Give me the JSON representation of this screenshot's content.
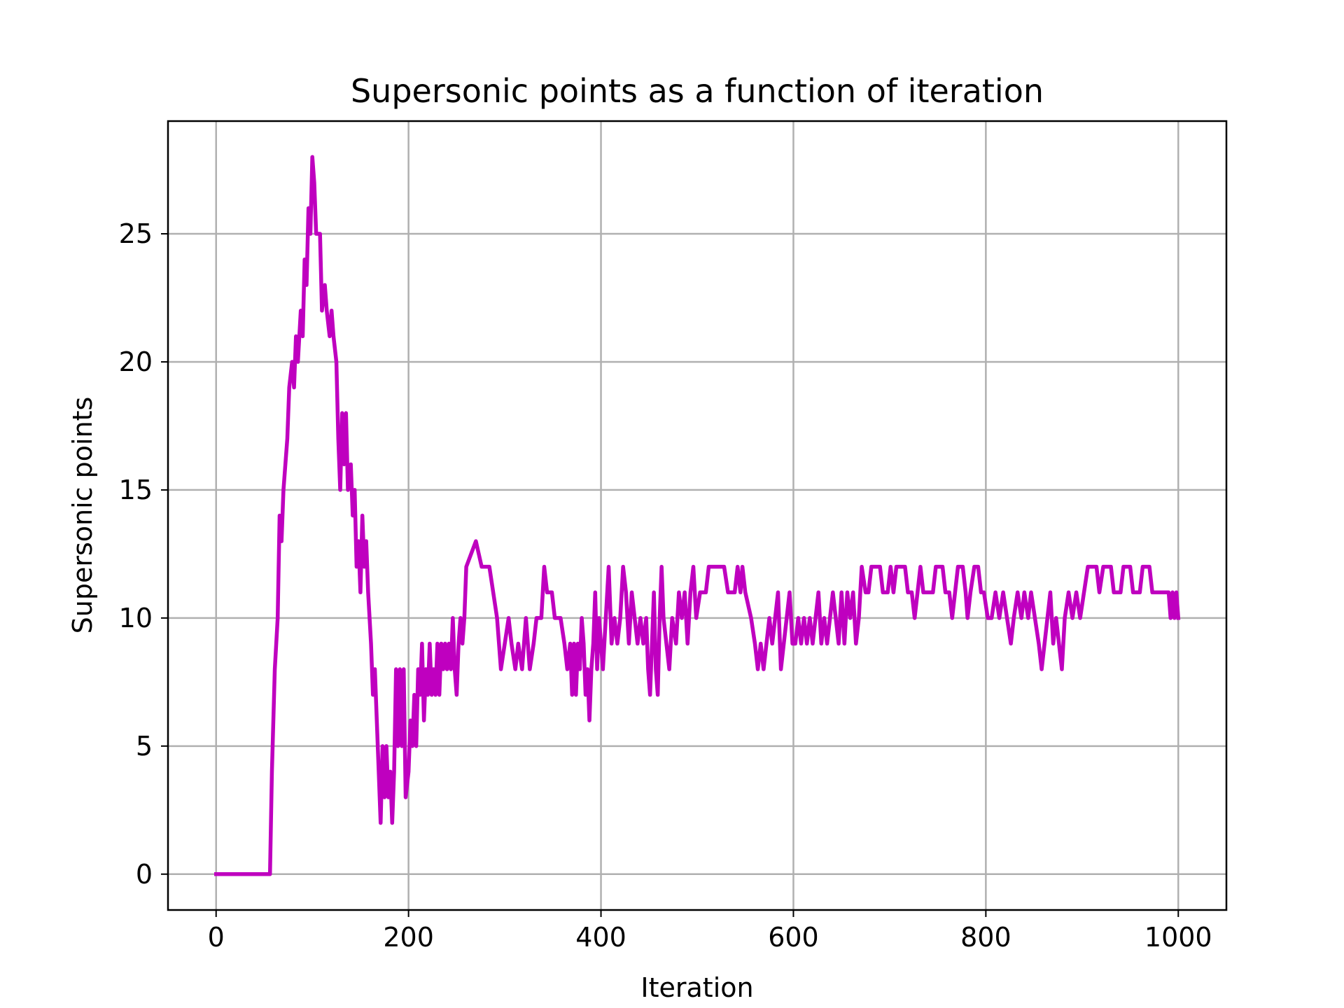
{
  "chart_data": {
    "type": "line",
    "title": "Supersonic points as a function of iteration",
    "xlabel": "Iteration",
    "ylabel": "Supersonic points",
    "xlim": [
      -50,
      1050
    ],
    "ylim": [
      -1.4,
      29.4
    ],
    "xticks": [
      0,
      200,
      400,
      600,
      800,
      1000
    ],
    "yticks": [
      0,
      5,
      10,
      15,
      20,
      25
    ],
    "grid": true,
    "series": [
      {
        "color": "#bf00bf",
        "points": [
          [
            0,
            0
          ],
          [
            56,
            0
          ],
          [
            58,
            4
          ],
          [
            61,
            8
          ],
          [
            64,
            10
          ],
          [
            66,
            14
          ],
          [
            68,
            13
          ],
          [
            70,
            15
          ],
          [
            72,
            16
          ],
          [
            74,
            17
          ],
          [
            76,
            19
          ],
          [
            79,
            20
          ],
          [
            81,
            19
          ],
          [
            83,
            21
          ],
          [
            85,
            20
          ],
          [
            88,
            22
          ],
          [
            90,
            21
          ],
          [
            92,
            24
          ],
          [
            94,
            23
          ],
          [
            96,
            26
          ],
          [
            98,
            25
          ],
          [
            100,
            28
          ],
          [
            102,
            27
          ],
          [
            104,
            25
          ],
          [
            108,
            25
          ],
          [
            110,
            22
          ],
          [
            113,
            23
          ],
          [
            115,
            22
          ],
          [
            118,
            21
          ],
          [
            120,
            22
          ],
          [
            122,
            21
          ],
          [
            125,
            20
          ],
          [
            127,
            17
          ],
          [
            129,
            15
          ],
          [
            131,
            18
          ],
          [
            133,
            16
          ],
          [
            135,
            18
          ],
          [
            137,
            15
          ],
          [
            140,
            16
          ],
          [
            142,
            14
          ],
          [
            144,
            15
          ],
          [
            146,
            12
          ],
          [
            148,
            13
          ],
          [
            150,
            11
          ],
          [
            152,
            14
          ],
          [
            154,
            12
          ],
          [
            156,
            13
          ],
          [
            158,
            11
          ],
          [
            161,
            9
          ],
          [
            163,
            7
          ],
          [
            165,
            8
          ],
          [
            167,
            6
          ],
          [
            169,
            4
          ],
          [
            171,
            2
          ],
          [
            173,
            5
          ],
          [
            175,
            3
          ],
          [
            177,
            5
          ],
          [
            179,
            3
          ],
          [
            181,
            4
          ],
          [
            183,
            2
          ],
          [
            185,
            4
          ],
          [
            187,
            8
          ],
          [
            189,
            5
          ],
          [
            191,
            8
          ],
          [
            193,
            5
          ],
          [
            195,
            8
          ],
          [
            197,
            3
          ],
          [
            200,
            4
          ],
          [
            202,
            6
          ],
          [
            204,
            5
          ],
          [
            206,
            7
          ],
          [
            208,
            5
          ],
          [
            210,
            8
          ],
          [
            212,
            7
          ],
          [
            214,
            9
          ],
          [
            216,
            6
          ],
          [
            218,
            8
          ],
          [
            220,
            7
          ],
          [
            222,
            9
          ],
          [
            224,
            7
          ],
          [
            226,
            8
          ],
          [
            228,
            7
          ],
          [
            230,
            9
          ],
          [
            232,
            7
          ],
          [
            234,
            9
          ],
          [
            236,
            8
          ],
          [
            238,
            9
          ],
          [
            240,
            8
          ],
          [
            242,
            9
          ],
          [
            244,
            8
          ],
          [
            246,
            10
          ],
          [
            248,
            8
          ],
          [
            250,
            7
          ],
          [
            252,
            9
          ],
          [
            254,
            10
          ],
          [
            256,
            9
          ],
          [
            258,
            10
          ],
          [
            260,
            12
          ],
          [
            270,
            13
          ],
          [
            276,
            12
          ],
          [
            284,
            12
          ],
          [
            288,
            11
          ],
          [
            292,
            10
          ],
          [
            296,
            8
          ],
          [
            300,
            9
          ],
          [
            304,
            10
          ],
          [
            307,
            9
          ],
          [
            311,
            8
          ],
          [
            314,
            9
          ],
          [
            318,
            8
          ],
          [
            322,
            10
          ],
          [
            326,
            8
          ],
          [
            330,
            9
          ],
          [
            333,
            10
          ],
          [
            338,
            10
          ],
          [
            341,
            12
          ],
          [
            344,
            11
          ],
          [
            349,
            11
          ],
          [
            352,
            10
          ],
          [
            358,
            10
          ],
          [
            362,
            9
          ],
          [
            365,
            8
          ],
          [
            368,
            9
          ],
          [
            370,
            7
          ],
          [
            372,
            9
          ],
          [
            374,
            7
          ],
          [
            376,
            9
          ],
          [
            378,
            8
          ],
          [
            380,
            10
          ],
          [
            382,
            9
          ],
          [
            384,
            7
          ],
          [
            386,
            8
          ],
          [
            388,
            6
          ],
          [
            390,
            8
          ],
          [
            392,
            9
          ],
          [
            394,
            11
          ],
          [
            396,
            8
          ],
          [
            398,
            10
          ],
          [
            400,
            9
          ],
          [
            402,
            8
          ],
          [
            405,
            10
          ],
          [
            408,
            12
          ],
          [
            411,
            9
          ],
          [
            414,
            10
          ],
          [
            417,
            9
          ],
          [
            420,
            10
          ],
          [
            423,
            12
          ],
          [
            426,
            11
          ],
          [
            429,
            9
          ],
          [
            432,
            11
          ],
          [
            435,
            10
          ],
          [
            438,
            9
          ],
          [
            441,
            10
          ],
          [
            444,
            9
          ],
          [
            447,
            10
          ],
          [
            449,
            8
          ],
          [
            451,
            7
          ],
          [
            453,
            9
          ],
          [
            455,
            11
          ],
          [
            457,
            8
          ],
          [
            459,
            7
          ],
          [
            461,
            10
          ],
          [
            463,
            12
          ],
          [
            465,
            10
          ],
          [
            468,
            9
          ],
          [
            471,
            8
          ],
          [
            474,
            10
          ],
          [
            478,
            9
          ],
          [
            481,
            11
          ],
          [
            484,
            10
          ],
          [
            487,
            11
          ],
          [
            490,
            9
          ],
          [
            493,
            11
          ],
          [
            496,
            12
          ],
          [
            499,
            10
          ],
          [
            503,
            11
          ],
          [
            509,
            11
          ],
          [
            512,
            12
          ],
          [
            528,
            12
          ],
          [
            532,
            11
          ],
          [
            539,
            11
          ],
          [
            542,
            12
          ],
          [
            545,
            11
          ],
          [
            547,
            12
          ],
          [
            550,
            11
          ],
          [
            556,
            10
          ],
          [
            560,
            9
          ],
          [
            563,
            8
          ],
          [
            566,
            9
          ],
          [
            569,
            8
          ],
          [
            572,
            9
          ],
          [
            575,
            10
          ],
          [
            578,
            9
          ],
          [
            581,
            10
          ],
          [
            584,
            11
          ],
          [
            587,
            8
          ],
          [
            590,
            9
          ],
          [
            593,
            10
          ],
          [
            596,
            11
          ],
          [
            599,
            9
          ],
          [
            602,
            9
          ],
          [
            605,
            10
          ],
          [
            608,
            9
          ],
          [
            611,
            10
          ],
          [
            614,
            9
          ],
          [
            617,
            10
          ],
          [
            620,
            9
          ],
          [
            623,
            10
          ],
          [
            626,
            11
          ],
          [
            629,
            9
          ],
          [
            632,
            10
          ],
          [
            635,
            9
          ],
          [
            638,
            10
          ],
          [
            641,
            11
          ],
          [
            644,
            10
          ],
          [
            647,
            9
          ],
          [
            650,
            11
          ],
          [
            653,
            9
          ],
          [
            656,
            11
          ],
          [
            659,
            10
          ],
          [
            662,
            11
          ],
          [
            665,
            9
          ],
          [
            668,
            10
          ],
          [
            671,
            12
          ],
          [
            675,
            11
          ],
          [
            678,
            11
          ],
          [
            681,
            12
          ],
          [
            690,
            12
          ],
          [
            693,
            11
          ],
          [
            698,
            11
          ],
          [
            701,
            12
          ],
          [
            704,
            11
          ],
          [
            707,
            12
          ],
          [
            716,
            12
          ],
          [
            719,
            11
          ],
          [
            723,
            11
          ],
          [
            726,
            10
          ],
          [
            729,
            11
          ],
          [
            732,
            12
          ],
          [
            735,
            11
          ],
          [
            745,
            11
          ],
          [
            748,
            12
          ],
          [
            755,
            12
          ],
          [
            758,
            11
          ],
          [
            762,
            11
          ],
          [
            765,
            10
          ],
          [
            768,
            11
          ],
          [
            771,
            12
          ],
          [
            776,
            12
          ],
          [
            779,
            11
          ],
          [
            781,
            10
          ],
          [
            784,
            11
          ],
          [
            788,
            12
          ],
          [
            792,
            12
          ],
          [
            795,
            11
          ],
          [
            798,
            11
          ],
          [
            802,
            10
          ],
          [
            806,
            10
          ],
          [
            810,
            11
          ],
          [
            814,
            10
          ],
          [
            818,
            11
          ],
          [
            822,
            10
          ],
          [
            826,
            9
          ],
          [
            829,
            10
          ],
          [
            833,
            11
          ],
          [
            837,
            10
          ],
          [
            840,
            11
          ],
          [
            844,
            10
          ],
          [
            847,
            11
          ],
          [
            851,
            10
          ],
          [
            855,
            9
          ],
          [
            858,
            8
          ],
          [
            861,
            9
          ],
          [
            864,
            10
          ],
          [
            867,
            11
          ],
          [
            870,
            9
          ],
          [
            873,
            10
          ],
          [
            876,
            9
          ],
          [
            879,
            8
          ],
          [
            882,
            10
          ],
          [
            886,
            11
          ],
          [
            890,
            10
          ],
          [
            894,
            11
          ],
          [
            898,
            10
          ],
          [
            902,
            11
          ],
          [
            906,
            12
          ],
          [
            915,
            12
          ],
          [
            918,
            11
          ],
          [
            922,
            12
          ],
          [
            930,
            12
          ],
          [
            933,
            11
          ],
          [
            940,
            11
          ],
          [
            943,
            12
          ],
          [
            950,
            12
          ],
          [
            953,
            11
          ],
          [
            960,
            11
          ],
          [
            963,
            12
          ],
          [
            970,
            12
          ],
          [
            973,
            11
          ],
          [
            990,
            11
          ],
          [
            992,
            10
          ],
          [
            994,
            11
          ],
          [
            996,
            10
          ],
          [
            998,
            11
          ],
          [
            1000,
            10
          ]
        ]
      }
    ]
  }
}
